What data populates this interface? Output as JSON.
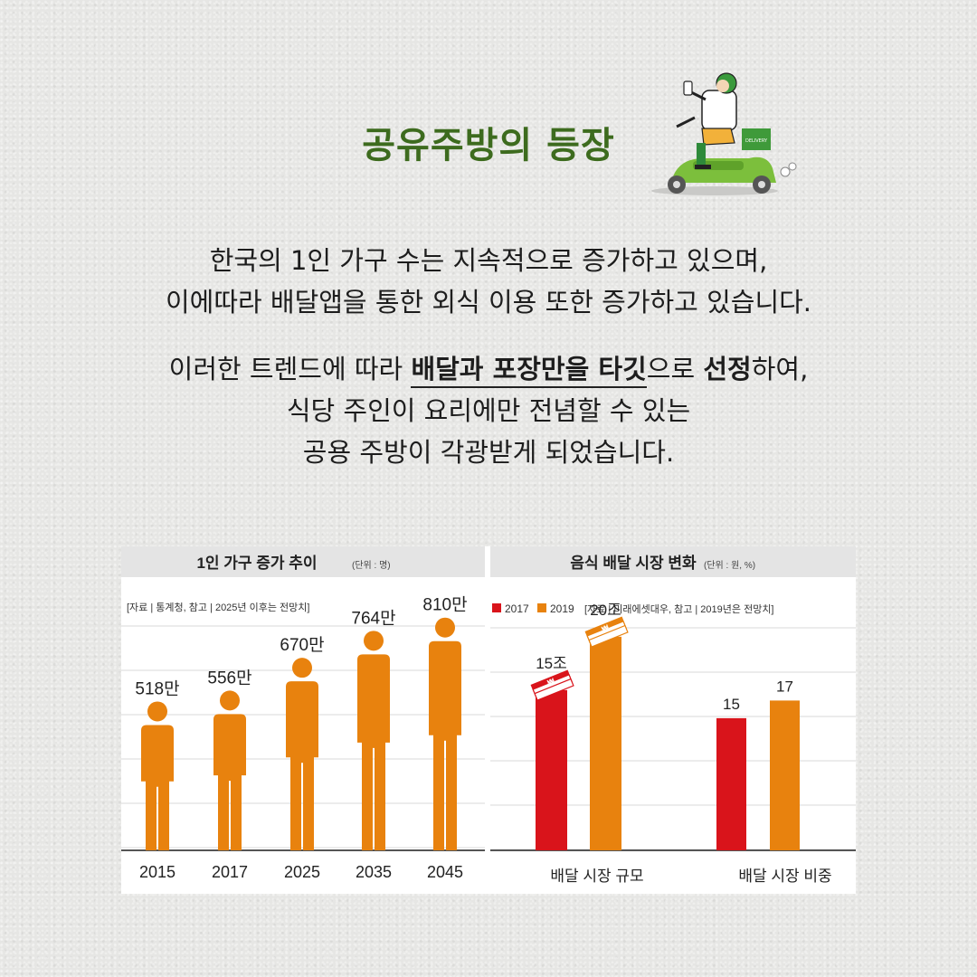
{
  "title": "공유주방의 등장",
  "paragraph1": {
    "line1": "한국의 1인 가구 수는 지속적으로 증가하고 있으며,",
    "line2": "이에따라 배달앱을 통한 외식 이용 또한 증가하고 있습니다."
  },
  "paragraph2": {
    "line1_pre": "이러한 트렌드에 따라 ",
    "line1_hl1": "배달과 포장만을 타깃",
    "line1_mid": "으로 ",
    "line1_hl2": "선정",
    "line1_post": "하여,",
    "line2": "식당 주인이 요리에만 전념할 수 있는",
    "line3": "공용 주방이 각광받게 되었습니다."
  },
  "scooter": {
    "box_text": "DELIVERY"
  },
  "colors": {
    "title": "#3d6b1e",
    "orange": "#e8820e",
    "red": "#d9141b"
  },
  "chart_data": [
    {
      "type": "bar",
      "title": "1인 가구 증가 추이",
      "unit": "(단위 : 명)",
      "source": "[자료 | 통계청, 참고 | 2025년 이후는 전망치]",
      "categories": [
        "2015",
        "2017",
        "2025",
        "2035",
        "2045"
      ],
      "values": [
        518,
        556,
        670,
        764,
        810
      ],
      "labels": [
        "518만",
        "556만",
        "670만",
        "764만",
        "810만"
      ],
      "ylim": [
        0,
        850
      ],
      "grid": true,
      "marker": "person-icon"
    },
    {
      "type": "bar",
      "title": "음식 배달 시장 변화",
      "unit": "(단위 : 원, %)",
      "legend_position": "top-left",
      "legend": [
        "2017",
        "2019"
      ],
      "source": "[자료 | 미래에셋대우, 참고 | 2019년은 전망치]",
      "categories": [
        "배달 시장 규모",
        "배달 시장 비중"
      ],
      "series": [
        {
          "name": "2017",
          "values": [
            15,
            15
          ],
          "labels": [
            "15조",
            "15"
          ]
        },
        {
          "name": "2019",
          "values": [
            20,
            17
          ],
          "labels": [
            "20조",
            "17"
          ]
        }
      ],
      "ylim": [
        0,
        25
      ],
      "grid": true
    }
  ]
}
